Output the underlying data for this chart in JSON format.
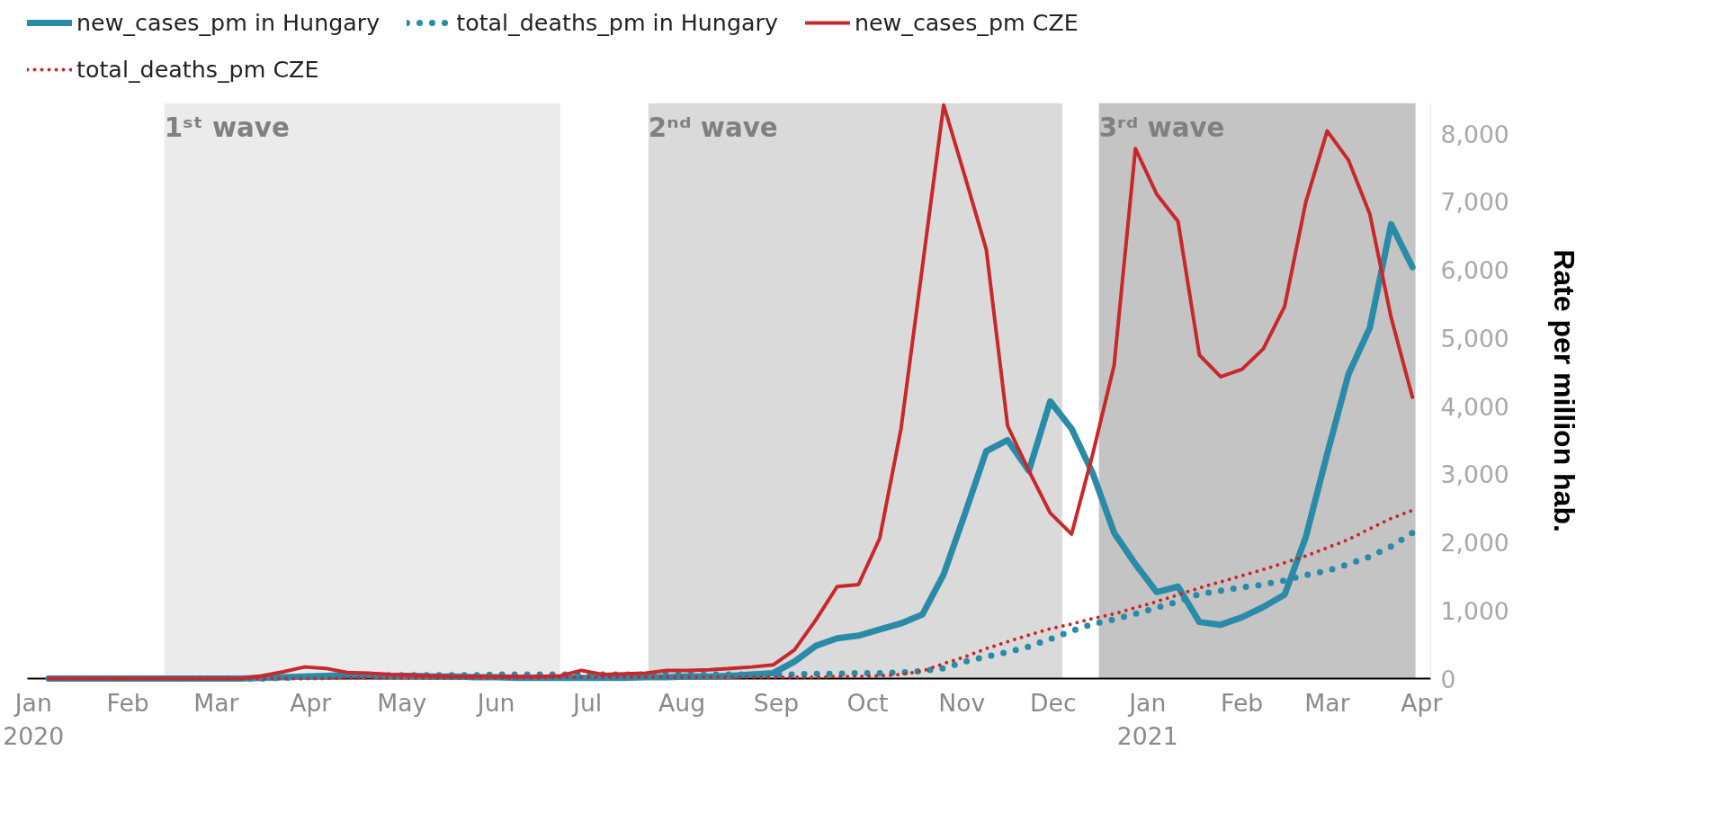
{
  "chart_data": {
    "type": "line",
    "ylabel": "Rate per million hab.",
    "legend": "top left",
    "grid": false,
    "marker": "none",
    "x": [
      "2020-01-06",
      "2020-01-13",
      "2020-01-20",
      "2020-01-27",
      "2020-02-03",
      "2020-02-10",
      "2020-02-17",
      "2020-02-24",
      "2020-03-02",
      "2020-03-09",
      "2020-03-16",
      "2020-03-23",
      "2020-03-30",
      "2020-04-06",
      "2020-04-13",
      "2020-04-20",
      "2020-04-27",
      "2020-05-04",
      "2020-05-11",
      "2020-05-18",
      "2020-05-25",
      "2020-06-01",
      "2020-06-08",
      "2020-06-15",
      "2020-06-22",
      "2020-06-29",
      "2020-07-06",
      "2020-07-13",
      "2020-07-20",
      "2020-07-27",
      "2020-08-03",
      "2020-08-10",
      "2020-08-17",
      "2020-08-24",
      "2020-08-31",
      "2020-09-07",
      "2020-09-14",
      "2020-09-21",
      "2020-09-28",
      "2020-10-05",
      "2020-10-12",
      "2020-10-19",
      "2020-10-26",
      "2020-11-02",
      "2020-11-09",
      "2020-11-16",
      "2020-11-23",
      "2020-11-30",
      "2020-12-07",
      "2020-12-14",
      "2020-12-21",
      "2020-12-28",
      "2021-01-04",
      "2021-01-11",
      "2021-01-18",
      "2021-01-25",
      "2021-02-01",
      "2021-02-08",
      "2021-02-15",
      "2021-02-22",
      "2021-03-01",
      "2021-03-08",
      "2021-03-15",
      "2021-03-22",
      "2021-03-29"
    ],
    "series": [
      {
        "name": "new_cases_pm in Hungary",
        "color": "#2a8ba8",
        "line_style": "solid",
        "values": [
          0,
          0,
          0,
          0,
          0,
          0,
          0,
          0,
          0,
          0,
          10,
          20,
          30,
          40,
          50,
          50,
          40,
          40,
          30,
          30,
          20,
          20,
          10,
          10,
          10,
          10,
          10,
          10,
          20,
          20,
          30,
          30,
          40,
          60,
          80,
          250,
          480,
          590,
          630,
          720,
          810,
          940,
          1530,
          2420,
          3340,
          3500,
          3050,
          4070,
          3670,
          3010,
          2140,
          1680,
          1270,
          1350,
          830,
          790,
          900,
          1050,
          1230,
          2080,
          3300,
          4470,
          5150,
          6670,
          6040
        ]
      },
      {
        "name": "total_deaths_pm in Hungary",
        "color": "#2a8ba8",
        "line_style": "dotted",
        "values": [
          0,
          0,
          0,
          0,
          0,
          0,
          0,
          0,
          0,
          0,
          0,
          10,
          20,
          30,
          40,
          40,
          50,
          50,
          50,
          50,
          50,
          60,
          60,
          60,
          60,
          60,
          60,
          60,
          60,
          60,
          60,
          60,
          60,
          60,
          60,
          60,
          70,
          70,
          80,
          80,
          90,
          110,
          150,
          250,
          320,
          390,
          470,
          580,
          700,
          800,
          870,
          950,
          1040,
          1130,
          1240,
          1290,
          1340,
          1380,
          1440,
          1520,
          1580,
          1680,
          1790,
          1940,
          2140
        ]
      },
      {
        "name": "new_cases_pm CZE",
        "color": "#c8282b",
        "line_style": "solid",
        "values": [
          0,
          0,
          0,
          0,
          0,
          0,
          0,
          0,
          0,
          0,
          40,
          100,
          170,
          150,
          90,
          80,
          60,
          50,
          40,
          30,
          30,
          30,
          30,
          30,
          40,
          120,
          60,
          70,
          80,
          120,
          120,
          130,
          150,
          170,
          200,
          420,
          860,
          1350,
          1380,
          2060,
          3670,
          6040,
          8420,
          7370,
          6300,
          3710,
          3050,
          2430,
          2120,
          3300,
          4600,
          7780,
          7110,
          6710,
          4750,
          4430,
          4540,
          4840,
          5460,
          7000,
          8040,
          7610,
          6820,
          5300,
          4130
        ]
      },
      {
        "name": "total_deaths_pm CZE",
        "color": "#c8282b",
        "line_style": "dotted",
        "values": [
          0,
          0,
          0,
          0,
          0,
          0,
          0,
          0,
          0,
          0,
          0,
          0,
          0,
          0,
          10,
          10,
          10,
          10,
          10,
          10,
          10,
          10,
          10,
          10,
          20,
          20,
          20,
          20,
          20,
          20,
          20,
          20,
          20,
          20,
          20,
          20,
          20,
          30,
          30,
          40,
          60,
          110,
          220,
          320,
          440,
          540,
          640,
          730,
          800,
          880,
          950,
          1040,
          1130,
          1230,
          1330,
          1420,
          1510,
          1600,
          1700,
          1800,
          1920,
          2040,
          2200,
          2350,
          2470
        ]
      }
    ],
    "xlim": [
      "2019-12-30",
      "2021-04-04"
    ],
    "xticks": [
      {
        "value": "2020-01-01",
        "label": "Jan\n2020"
      },
      {
        "value": "2020-02-01",
        "label": "Feb"
      },
      {
        "value": "2020-03-01",
        "label": "Mar"
      },
      {
        "value": "2020-04-01",
        "label": "Apr"
      },
      {
        "value": "2020-05-01",
        "label": "May"
      },
      {
        "value": "2020-06-01",
        "label": "Jun"
      },
      {
        "value": "2020-07-01",
        "label": "Jul"
      },
      {
        "value": "2020-08-01",
        "label": "Aug"
      },
      {
        "value": "2020-09-01",
        "label": "Sep"
      },
      {
        "value": "2020-10-01",
        "label": "Oct"
      },
      {
        "value": "2020-11-01",
        "label": "Nov"
      },
      {
        "value": "2020-12-01",
        "label": "Dec"
      },
      {
        "value": "2021-01-01",
        "label": "Jan\n2021"
      },
      {
        "value": "2021-02-01",
        "label": "Feb"
      },
      {
        "value": "2021-03-01",
        "label": "Mar"
      },
      {
        "value": "2021-04-01",
        "label": "Apr"
      }
    ],
    "ylim": [
      0,
      8450
    ],
    "yticks": [
      {
        "value": 0,
        "label": "0"
      },
      {
        "value": 1000,
        "label": "1,000"
      },
      {
        "value": 2000,
        "label": "2,000"
      },
      {
        "value": 3000,
        "label": "3,000"
      },
      {
        "value": 4000,
        "label": "4,000"
      },
      {
        "value": 5000,
        "label": "5,000"
      },
      {
        "value": 6000,
        "label": "6,000"
      },
      {
        "value": 7000,
        "label": "7,000"
      },
      {
        "value": 8000,
        "label": "8,000"
      }
    ],
    "bands": [
      {
        "axis": "x",
        "from": "2020-02-13",
        "to": "2020-06-22",
        "label": "1ˢᵗ wave",
        "color": "#ebebeb"
      },
      {
        "axis": "x",
        "from": "2020-07-21",
        "to": "2020-12-04",
        "label": "2ⁿᵈ wave",
        "color": "#dadada"
      },
      {
        "axis": "x",
        "from": "2020-12-16",
        "to": "2021-03-30",
        "label": "3ʳᵈ wave",
        "color": "#c4c4c4"
      }
    ]
  }
}
